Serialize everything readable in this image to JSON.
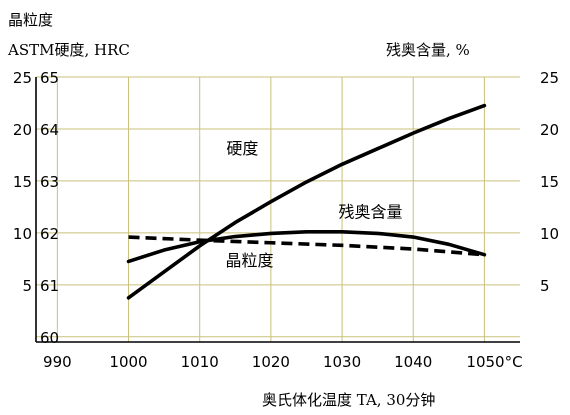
{
  "chart_data": {
    "type": "line",
    "left_axis_title_line1": "晶粒度",
    "left_axis_title_line2": "ASTM硬度, HRC",
    "right_axis_title": "残奥含量, %",
    "xlabel": "奥氏体化温度 TA, 30分钟",
    "x_ticks": [
      "990",
      "1000",
      "1010",
      "1020",
      "1030",
      "1040",
      "1050°C"
    ],
    "x_tick_values": [
      990,
      1000,
      1010,
      1020,
      1030,
      1040,
      1050
    ],
    "xlim": [
      987,
      1055
    ],
    "hrc_ticks": [
      "60",
      "61",
      "62",
      "63",
      "64",
      "65"
    ],
    "hrc_tick_values": [
      60,
      61,
      62,
      63,
      64,
      65
    ],
    "astm_ticks": [
      "5",
      "10",
      "15",
      "20",
      "25"
    ],
    "astm_tick_values": [
      5,
      10,
      15,
      20,
      25
    ],
    "right_ticks": [
      "5",
      "10",
      "15",
      "20",
      "25"
    ],
    "right_tick_values": [
      5,
      10,
      15,
      20,
      25
    ],
    "ylim_astm": [
      -0.5,
      25
    ],
    "grid": true,
    "series": [
      {
        "name": "硬度",
        "axis": "HRC",
        "style": "solid",
        "x": [
          1000,
          1005,
          1010,
          1015,
          1020,
          1025,
          1030,
          1035,
          1040,
          1045,
          1050
        ],
        "values": [
          60.75,
          61.25,
          61.75,
          62.2,
          62.6,
          62.98,
          63.32,
          63.62,
          63.92,
          64.2,
          64.45
        ]
      },
      {
        "name": "残奥含量",
        "axis": "right",
        "style": "solid",
        "x": [
          1000,
          1005,
          1010,
          1015,
          1020,
          1025,
          1030,
          1035,
          1040,
          1045,
          1050
        ],
        "values": [
          7.25,
          8.35,
          9.15,
          9.65,
          9.95,
          10.1,
          10.1,
          9.95,
          9.6,
          8.9,
          7.9
        ]
      },
      {
        "name": "晶粒度",
        "axis": "ASTM",
        "style": "dashed",
        "x": [
          1000,
          1010,
          1020,
          1030,
          1040,
          1050
        ],
        "values": [
          9.6,
          9.3,
          9.05,
          8.8,
          8.45,
          7.9
        ]
      }
    ],
    "series_labels": [
      {
        "text": "硬度",
        "x": 1016,
        "y_astm": 17.6
      },
      {
        "text": "残奥含量",
        "x": 1034,
        "y_astm": 11.5
      },
      {
        "text": "晶粒度",
        "x": 1017,
        "y_astm": 6.8
      }
    ]
  }
}
